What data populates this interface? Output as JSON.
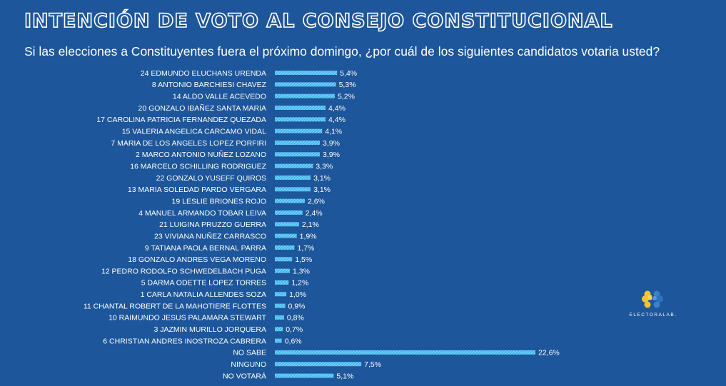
{
  "title": "INTENCIÓN DE VOTO AL CONSEJO CONSTITUCIONAL",
  "subtitle": "Si las elecciones a Constituyentes fuera el próximo domingo, ¿por cuál de los siguientes candidatos votaria usted?",
  "logo": {
    "text": "ELECTORALAB.",
    "icon": "brain-icon"
  },
  "colors": {
    "background": "#1d569a",
    "bar": "#40b8f0",
    "text": "#ffffff",
    "logo_left": "#f4c430",
    "logo_right": "#2a74c0"
  },
  "chart_data": {
    "type": "bar",
    "orientation": "horizontal",
    "categories": [
      "24 EDMUNDO ELUCHANS URENDA",
      "8 ANTONIO BARCHIESI CHAVEZ",
      "14 ALDO VALLE ACEVEDO",
      "20 GONZALO IBAÑEZ SANTA MARIA",
      "17 CAROLINA PATRICIA FERNANDEZ QUEZADA",
      "15 VALERIA ANGELICA CARCAMO VIDAL",
      "7 MARIA DE LOS ANGELES LOPEZ PORFIRI",
      "2 MARCO ANTONIO NUÑEZ LOZANO",
      "16 MARCELO SCHILLING RODRIGUEZ",
      "22 GONZALO YUSEFF QUIROS",
      "13 MARIA SOLEDAD PARDO VERGARA",
      "19 LESLIE BRIONES ROJO",
      "4 MANUEL ARMANDO TOBAR LEIVA",
      "21 LUIGINA PRUZZO GUERRA",
      "23 VIVIANA NUÑEZ CARRASCO",
      "9 TATIANA PAOLA BERNAL PARRA",
      "18 GONZALO ANDRES VEGA MORENO",
      "12 PEDRO RODOLFO SCHWEDELBACH PUGA",
      "5 DARMA ODETTE LOPEZ TORRES",
      "1 CARLA NATALIA ALLENDES SOZA",
      "11 CHANTAL ROBERT DE LA MAHOTIERE FLOTTES",
      "10 RAIMUNDO JESUS PALAMARA STEWART",
      "3 JAZMIN MURILLO JORQUERA",
      "6 CHRISTIAN ANDRES INOSTROZA CABRERA",
      "NO SABE",
      "NINGUNO",
      "NO VOTARÁ"
    ],
    "values": [
      5.4,
      5.3,
      5.2,
      4.4,
      4.4,
      4.1,
      3.9,
      3.9,
      3.3,
      3.1,
      3.1,
      2.6,
      2.4,
      2.1,
      1.9,
      1.7,
      1.5,
      1.3,
      1.2,
      1.0,
      0.9,
      0.8,
      0.7,
      0.6,
      22.6,
      7.5,
      5.1
    ],
    "value_labels": [
      "5,4%",
      "5,3%",
      "5,2%",
      "4,4%",
      "4,4%",
      "4,1%",
      "3,9%",
      "3,9%",
      "3,3%",
      "3,1%",
      "3,1%",
      "2,6%",
      "2,4%",
      "2,1%",
      "1,9%",
      "1,7%",
      "1,5%",
      "1,3%",
      "1,2%",
      "1,0%",
      "0,9%",
      "0,8%",
      "0,7%",
      "0,6%",
      "22,6%",
      "7,5%",
      "5,1%"
    ],
    "unit": "%",
    "xlim": [
      0,
      22.6
    ],
    "grid": false,
    "legend": "none"
  }
}
